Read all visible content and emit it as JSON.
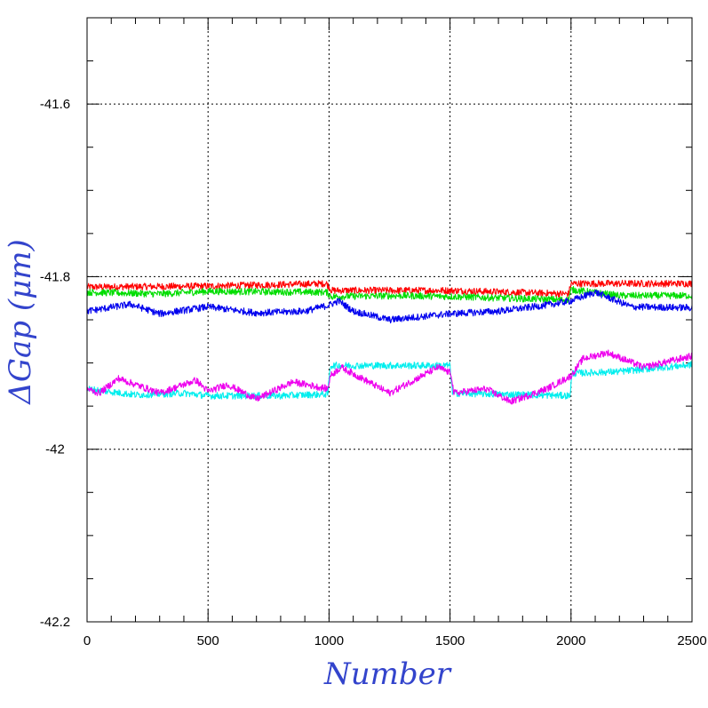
{
  "chart_data": {
    "type": "line",
    "title": "",
    "xlabel": "Number",
    "ylabel": "ΔGap (μm)",
    "xlim": [
      0,
      2500
    ],
    "ylim": [
      -42.2,
      -41.5
    ],
    "x_ticks": [
      0,
      500,
      1000,
      1500,
      2000,
      2500
    ],
    "y_ticks": [
      -42.2,
      -42,
      -41.8,
      -41.6
    ],
    "x_tick_labels": [
      "0",
      "500",
      "1000",
      "1500",
      "2000",
      "2500"
    ],
    "y_tick_labels": [
      "-42.2",
      "-42",
      "-41.8",
      "-41.6"
    ],
    "grid": true,
    "legend": "none",
    "colors": {
      "axis_title": "#3344cc",
      "grid": "#000000"
    },
    "series": [
      {
        "color": "#ff0000",
        "noise": 0.004,
        "points": [
          [
            0,
            -41.812
          ],
          [
            500,
            -41.811
          ],
          [
            990,
            -41.808
          ],
          [
            1010,
            -41.816
          ],
          [
            1500,
            -41.816
          ],
          [
            1990,
            -41.82
          ],
          [
            2000,
            -41.808
          ],
          [
            2500,
            -41.808
          ]
        ]
      },
      {
        "color": "#00dd00",
        "noise": 0.004,
        "points": [
          [
            0,
            -41.818
          ],
          [
            300,
            -41.82
          ],
          [
            500,
            -41.817
          ],
          [
            990,
            -41.818
          ],
          [
            1010,
            -41.823
          ],
          [
            1300,
            -41.822
          ],
          [
            1500,
            -41.823
          ],
          [
            1990,
            -41.827
          ],
          [
            2000,
            -41.815
          ],
          [
            2200,
            -41.822
          ],
          [
            2500,
            -41.822
          ]
        ]
      },
      {
        "color": "#0000ee",
        "noise": 0.004,
        "points": [
          [
            0,
            -41.84
          ],
          [
            180,
            -41.832
          ],
          [
            300,
            -41.843
          ],
          [
            500,
            -41.835
          ],
          [
            700,
            -41.842
          ],
          [
            900,
            -41.84
          ],
          [
            1000,
            -41.833
          ],
          [
            1040,
            -41.828
          ],
          [
            1100,
            -41.84
          ],
          [
            1250,
            -41.85
          ],
          [
            1500,
            -41.843
          ],
          [
            1700,
            -41.84
          ],
          [
            1900,
            -41.833
          ],
          [
            2000,
            -41.828
          ],
          [
            2100,
            -41.818
          ],
          [
            2250,
            -41.835
          ],
          [
            2500,
            -41.836
          ]
        ]
      },
      {
        "color": "#00eeee",
        "noise": 0.004,
        "points": [
          [
            0,
            -41.93
          ],
          [
            200,
            -41.937
          ],
          [
            400,
            -41.935
          ],
          [
            500,
            -41.938
          ],
          [
            650,
            -41.938
          ],
          [
            800,
            -41.938
          ],
          [
            995,
            -41.936
          ],
          [
            1005,
            -41.903
          ],
          [
            1500,
            -41.903
          ],
          [
            1510,
            -41.935
          ],
          [
            1995,
            -41.938
          ],
          [
            2005,
            -41.912
          ],
          [
            2200,
            -41.91
          ],
          [
            2500,
            -41.902
          ]
        ]
      },
      {
        "color": "#ee00ee",
        "noise": 0.004,
        "points": [
          [
            0,
            -41.93
          ],
          [
            50,
            -41.935
          ],
          [
            130,
            -41.918
          ],
          [
            300,
            -41.935
          ],
          [
            450,
            -41.92
          ],
          [
            500,
            -41.933
          ],
          [
            580,
            -41.925
          ],
          [
            700,
            -41.942
          ],
          [
            850,
            -41.922
          ],
          [
            995,
            -41.93
          ],
          [
            1005,
            -41.915
          ],
          [
            1050,
            -41.905
          ],
          [
            1250,
            -41.935
          ],
          [
            1450,
            -41.905
          ],
          [
            1505,
            -41.912
          ],
          [
            1515,
            -41.935
          ],
          [
            1650,
            -41.93
          ],
          [
            1750,
            -41.945
          ],
          [
            1900,
            -41.93
          ],
          [
            2000,
            -41.915
          ],
          [
            2050,
            -41.895
          ],
          [
            2150,
            -41.888
          ],
          [
            2300,
            -41.905
          ],
          [
            2500,
            -41.892
          ]
        ]
      }
    ]
  }
}
